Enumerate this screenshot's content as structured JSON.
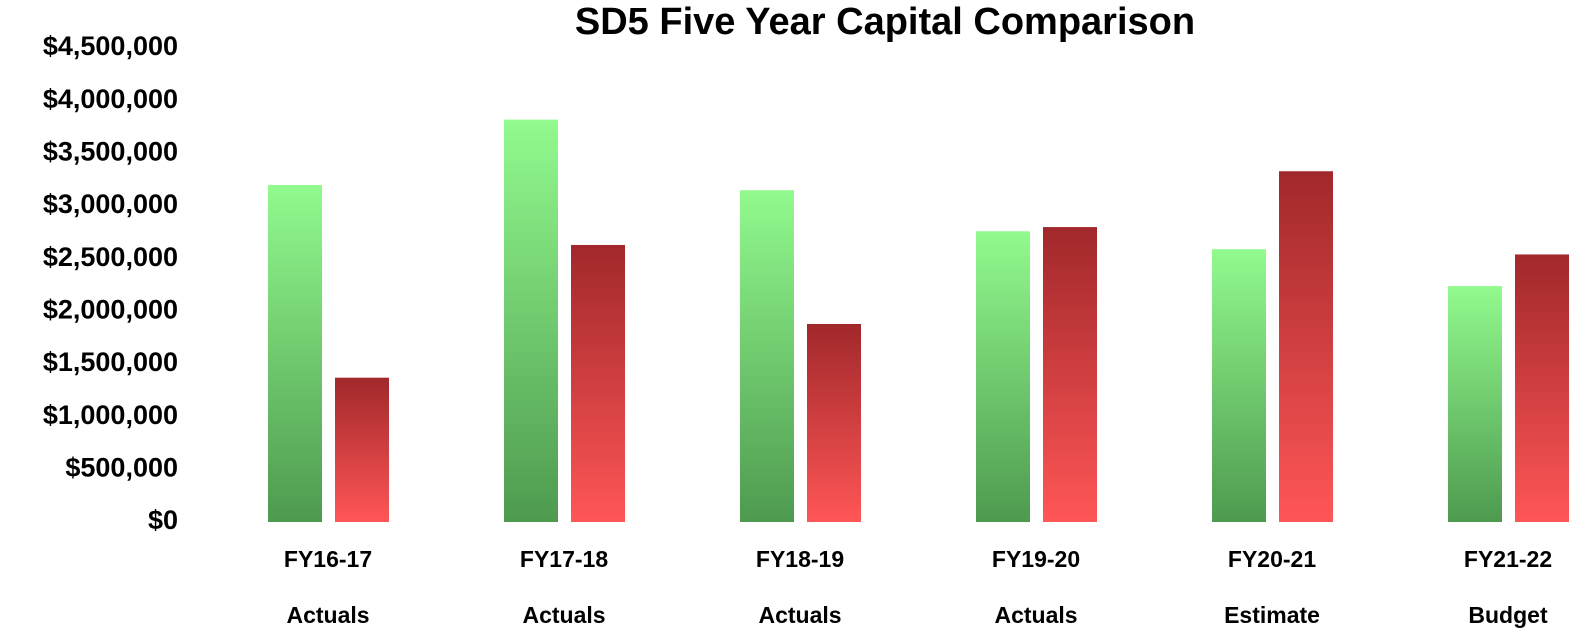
{
  "chart_data": {
    "type": "bar",
    "title": "SD5 Five Year Capital Comparison",
    "categories": [
      "FY16-17",
      "FY17-18",
      "FY18-19",
      "FY19-20",
      "FY20-21",
      "FY21-22"
    ],
    "category_sublabels": [
      "Actuals",
      "Actuals",
      "Actuals",
      "Actuals",
      "Estimate",
      "Budget"
    ],
    "series": [
      {
        "colors": [
          "#92fa8e",
          "#4e9a4f"
        ],
        "values": [
          3200000,
          3820000,
          3150000,
          2760000,
          2590000,
          2240000
        ]
      },
      {
        "colors": [
          "#a1282b",
          "#ff5656"
        ],
        "values": [
          1370000,
          2630000,
          1880000,
          2800000,
          3330000,
          2540000
        ]
      }
    ],
    "ylim": [
      0,
      4500000
    ],
    "yticks": [
      {
        "value": 0,
        "label": "$0"
      },
      {
        "value": 500000,
        "label": "$500,000"
      },
      {
        "value": 1000000,
        "label": "$1,000,000"
      },
      {
        "value": 1500000,
        "label": "$1,500,000"
      },
      {
        "value": 2000000,
        "label": "$2,000,000"
      },
      {
        "value": 2500000,
        "label": "$2,500,000"
      },
      {
        "value": 3000000,
        "label": "$3,000,000"
      },
      {
        "value": 3500000,
        "label": "$3,500,000"
      },
      {
        "value": 4000000,
        "label": "$4,000,000"
      },
      {
        "value": 4500000,
        "label": "$4,500,000"
      }
    ],
    "grid": false
  }
}
